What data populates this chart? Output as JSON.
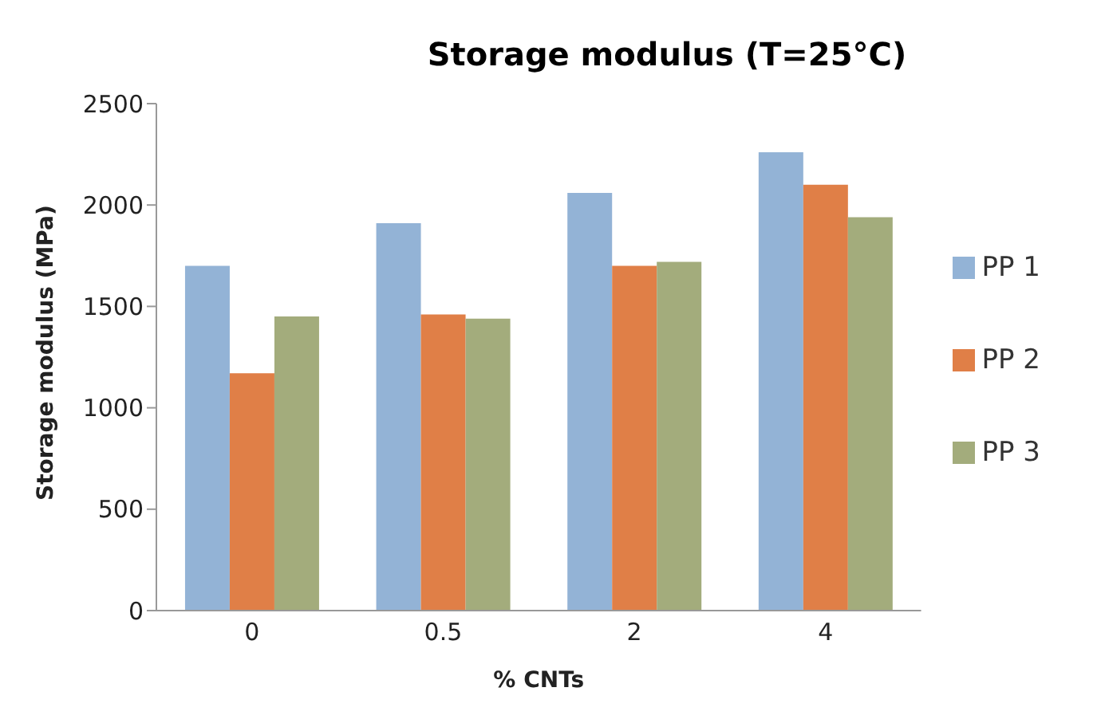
{
  "chart_data": {
    "type": "bar",
    "title": "Storage modulus (T=25°C)",
    "xlabel": "% CNTs",
    "ylabel": "Storage modulus (MPa)",
    "categories": [
      "0",
      "0.5",
      "2",
      "4"
    ],
    "series": [
      {
        "name": "PP 1",
        "color": "#93b3d6",
        "values": [
          1700,
          1910,
          2060,
          2260
        ]
      },
      {
        "name": "PP 2",
        "color": "#e07f47",
        "values": [
          1170,
          1460,
          1700,
          2100
        ]
      },
      {
        "name": "PP 3",
        "color": "#a3ac7c",
        "values": [
          1450,
          1440,
          1720,
          1940
        ]
      }
    ],
    "ylim": [
      0,
      2500
    ],
    "yticks": [
      0,
      500,
      1000,
      1500,
      2000,
      2500
    ],
    "grid": false,
    "legend": "right"
  }
}
